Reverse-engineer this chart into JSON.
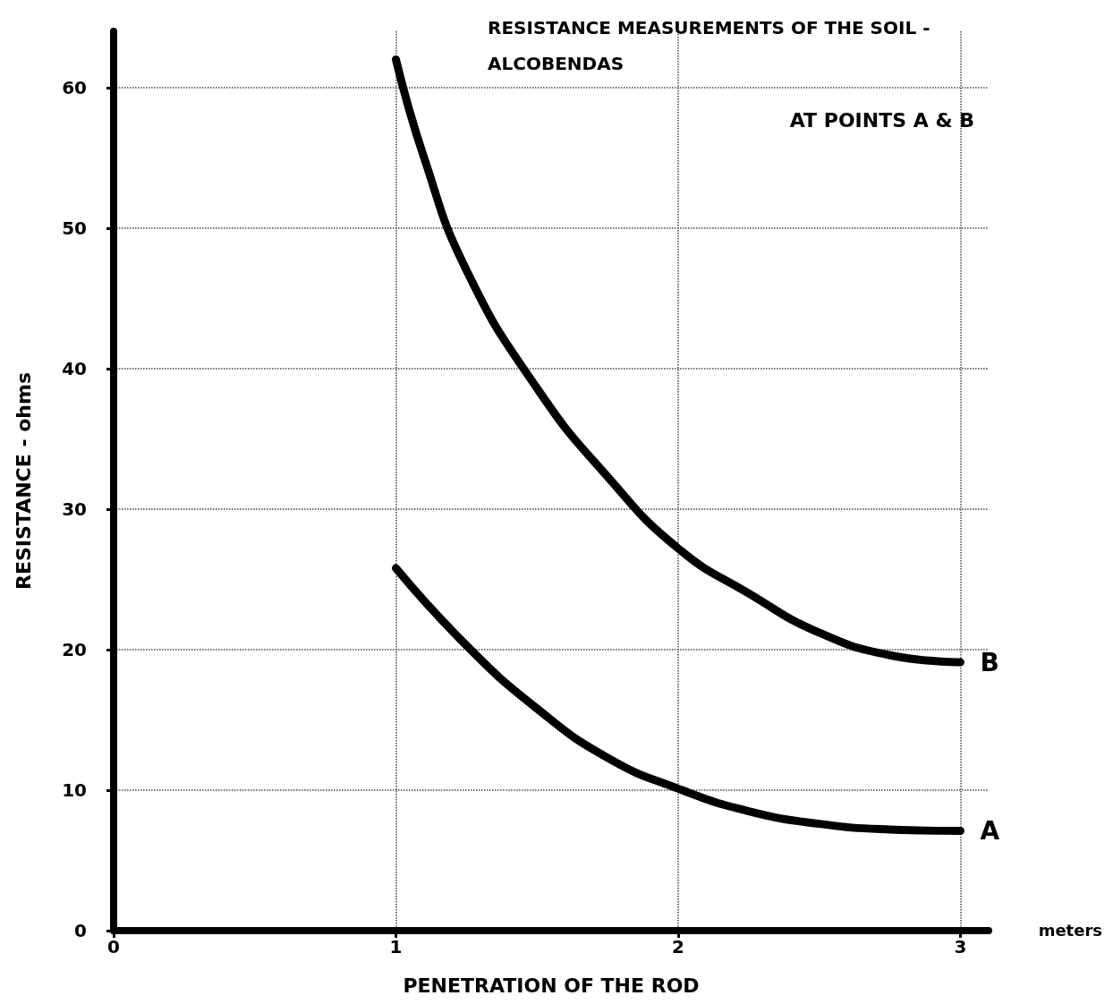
{
  "chart_data": {
    "type": "line",
    "title": "RESISTANCE MEASUREMENTS OF THE SOIL - ALCOBENDAS",
    "subtitle": "AT POINTS A & B",
    "xlabel": "PENETRATION OF THE ROD",
    "ylabel": "RESISTANCE - ohms",
    "annotations": [
      "meters"
    ],
    "xlim": [
      0,
      3.1
    ],
    "xticks": [
      0,
      1,
      2,
      3
    ],
    "ylim": [
      0,
      64
    ],
    "yticks": [
      0,
      10,
      20,
      30,
      40,
      50,
      60
    ],
    "grid": true,
    "line_style": "solid",
    "legend": false,
    "series": [
      {
        "name": "A",
        "color": "#000000",
        "x": [
          1.0,
          1.25,
          1.5,
          1.75,
          2.0,
          2.25,
          2.5,
          2.75,
          3.0
        ],
        "values": [
          25.8,
          20.3,
          15.8,
          12.3,
          10.1,
          8.5,
          7.6,
          7.2,
          7.1
        ]
      },
      {
        "name": "B",
        "color": "#000000",
        "x": [
          1.0,
          1.1,
          1.25,
          1.5,
          1.75,
          2.0,
          2.25,
          2.5,
          2.75,
          3.0
        ],
        "values": [
          62,
          55,
          47,
          38.6,
          32.3,
          27.2,
          24,
          21.2,
          19.6,
          19.1
        ]
      }
    ]
  }
}
